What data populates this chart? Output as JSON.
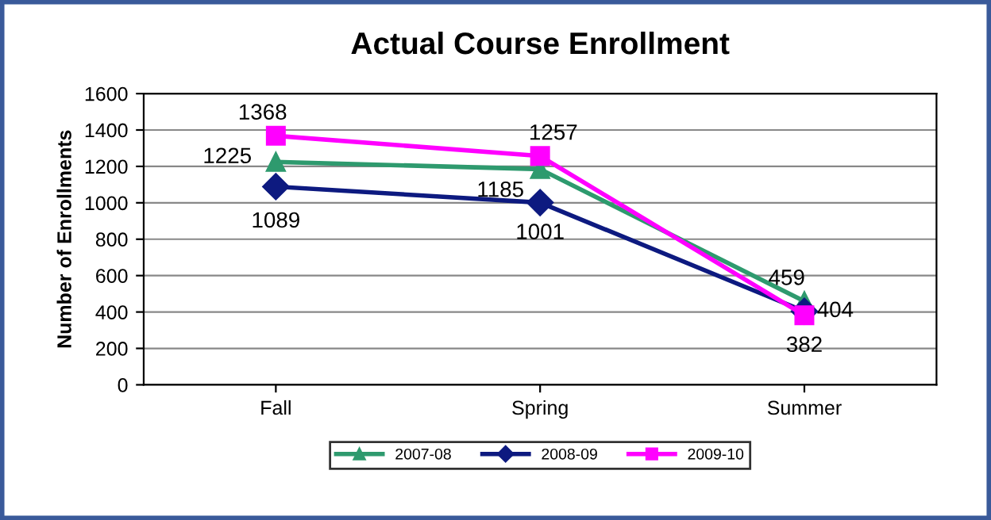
{
  "chart_data": {
    "type": "line",
    "title": "Actual Course Enrollment",
    "ylabel": "Number of Enrollments",
    "categories": [
      "Fall",
      "Spring",
      "Summer"
    ],
    "series": [
      {
        "name": "2007-08",
        "color": "#2e9a6e",
        "values": [
          1225,
          1185,
          459
        ],
        "marker": "triangle"
      },
      {
        "name": "2008-09",
        "color": "#0d1a80",
        "values": [
          1089,
          1001,
          404
        ],
        "marker": "diamond"
      },
      {
        "name": "2009-10",
        "color": "#ff00ff",
        "values": [
          1368,
          1257,
          382
        ],
        "marker": "square"
      }
    ],
    "ylim": [
      0,
      1600
    ],
    "yticks": [
      0,
      200,
      400,
      600,
      800,
      1000,
      1200,
      1400,
      1600
    ],
    "grid": "y",
    "legend": "bottom",
    "data_labels": true,
    "line_style": "solid"
  }
}
